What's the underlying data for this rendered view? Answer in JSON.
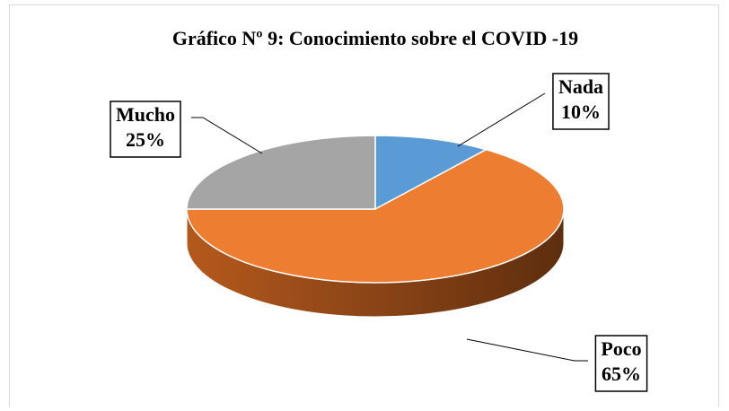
{
  "chart_data": {
    "type": "pie",
    "title": "Gráfico Nº 9: Conocimiento sobre el COVID -19",
    "categories": [
      "Nada",
      "Poco",
      "Mucho"
    ],
    "values": [
      10,
      65,
      25
    ],
    "value_labels": [
      "10%",
      "65%",
      "25%"
    ],
    "colors": [
      "#5b9bd5",
      "#ed7d31",
      "#a5a5a5"
    ]
  }
}
